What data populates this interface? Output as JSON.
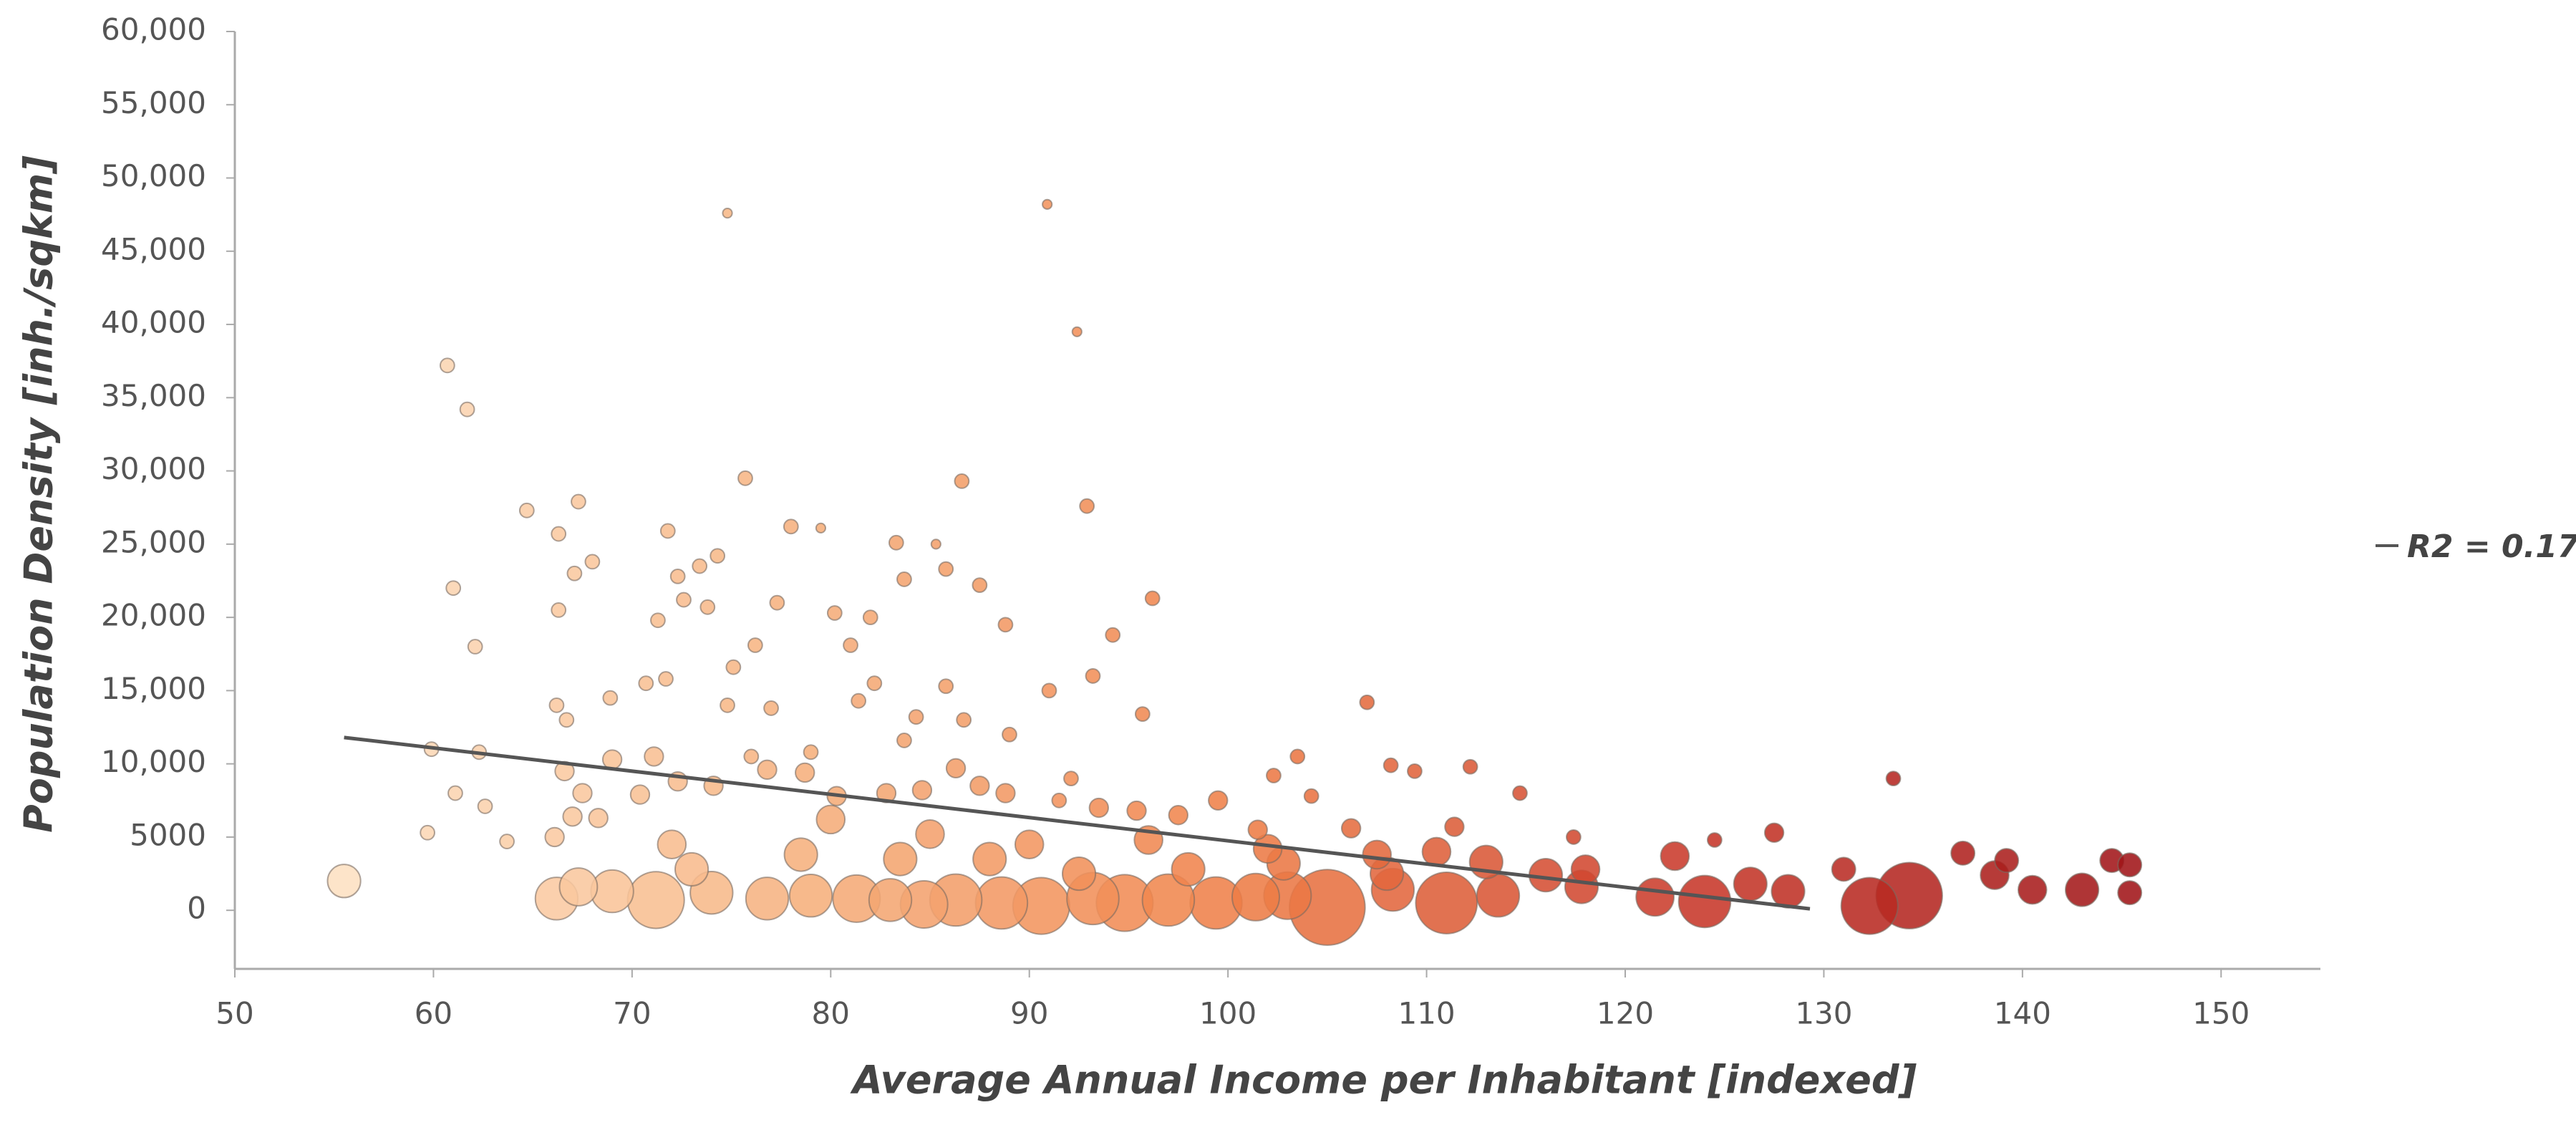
{
  "chart_data": {
    "type": "scatter",
    "x_label": "Average Annual Income per Inhabitant [indexed]",
    "y_label": "Population Density [inh./sqkm]",
    "xlim": [
      50,
      155
    ],
    "ylim": [
      -4000,
      60000
    ],
    "xticks": [
      50,
      60,
      70,
      80,
      90,
      100,
      110,
      120,
      130,
      140,
      150
    ],
    "yticks": [
      0,
      5000,
      {
        "value": 10000,
        "label": "10,000"
      },
      {
        "value": 15000,
        "label": "15,000"
      },
      {
        "value": 20000,
        "label": "20,000"
      },
      {
        "value": 25000,
        "label": "25,000"
      },
      {
        "value": 30000,
        "label": "30,000"
      },
      {
        "value": 35000,
        "label": "35,000"
      },
      {
        "value": 40000,
        "label": "40,000"
      },
      {
        "value": 45000,
        "label": "45,000"
      },
      {
        "value": 50000,
        "label": "50,000"
      },
      {
        "value": 55000,
        "label": "55,000"
      },
      {
        "value": 60000,
        "label": "60,000"
      }
    ],
    "grid": false,
    "colors": [
      "#fde0c2",
      "#f6b17e",
      "#ef7f47",
      "#c9392a",
      "#a01518"
    ],
    "x": [
      74.8,
      90.9,
      92.4,
      60.7,
      61.7,
      75.7,
      86.6,
      92.9,
      64.7,
      67.3,
      71.8,
      78,
      79.5,
      83.3,
      85.3,
      66.3,
      74.3,
      68,
      73.4,
      72.3,
      67.1,
      83.7,
      87.5,
      61,
      85.8,
      96.2,
      62.1,
      66.3,
      71.3,
      72.6,
      73.8,
      77.3,
      80.2,
      82,
      88.8,
      94.2,
      81,
      76.2,
      75.1,
      71.7,
      70.7,
      85.8,
      82.2,
      93.2,
      91,
      68.9,
      74.8,
      66.2,
      66.7,
      77,
      81.4,
      84.3,
      86.7,
      95.7,
      107,
      59.9,
      62.3,
      69,
      71.1,
      76,
      79,
      83.7,
      89,
      86.3,
      92.1,
      108.2,
      109.4,
      102.3,
      112.2,
      103.5,
      133.5,
      61.1,
      62.6,
      63.7,
      59.7,
      66.6,
      67.5,
      67,
      68.3,
      66.1,
      70.4,
      72.3,
      74.1,
      76.8,
      78.7,
      80.3,
      82.8,
      84.6,
      87.5,
      88.8,
      91.5,
      93.5,
      95.4,
      97.5,
      99.5,
      101.5,
      104.2,
      106.2,
      111.4,
      114.7,
      117.4,
      124.5,
      127.5,
      137,
      139.2,
      144.5,
      145.4,
      131,
      138.6,
      140.5,
      143,
      145.4,
      134.3,
      132.3,
      128.2,
      126.3,
      124,
      121.5,
      117.8,
      116,
      113.6,
      111,
      108.3,
      105,
      103,
      101.4,
      99.4,
      97,
      94.8,
      93.2,
      90.6,
      88.6,
      86.3,
      84.7,
      83,
      81.3,
      79,
      76.8,
      74,
      71.2,
      69,
      67.3,
      66.2,
      55.5,
      73,
      78.5,
      83.5,
      88,
      92.5,
      98,
      102.8,
      108,
      113,
      118,
      122.5,
      72,
      80,
      85,
      90,
      96,
      102,
      107.5,
      110.5
    ],
    "y": [
      47600,
      48200,
      39500,
      37200,
      34200,
      29500,
      29300,
      27600,
      27300,
      27900,
      25900,
      26200,
      26100,
      25100,
      25000,
      25700,
      24200,
      23800,
      23500,
      22800,
      23000,
      22600,
      22200,
      22000,
      23300,
      21300,
      18000,
      20500,
      19800,
      21200,
      20700,
      21000,
      20300,
      20000,
      19500,
      18800,
      18100,
      18100,
      16600,
      15800,
      15500,
      15300,
      15500,
      16000,
      15000,
      14500,
      14000,
      14000,
      13000,
      13800,
      14300,
      13200,
      13000,
      13400,
      14200,
      11000,
      10800,
      10300,
      10500,
      10500,
      10800,
      11600,
      12000,
      9700,
      9000,
      9900,
      9500,
      9200,
      9800,
      10500,
      9000,
      8000,
      7100,
      4700,
      5300,
      9500,
      8000,
      6400,
      6300,
      5000,
      7900,
      8800,
      8500,
      9600,
      9400,
      7800,
      8000,
      8200,
      8500,
      8000,
      7500,
      7000,
      6800,
      6500,
      7500,
      5500,
      7800,
      5600,
      5700,
      8000,
      5000,
      4800,
      5300,
      3900,
      3400,
      3400,
      3100,
      2800,
      2400,
      1400,
      1400,
      1200,
      1000,
      300,
      1300,
      1800,
      600,
      900,
      1600,
      2400,
      1000,
      500,
      1400,
      200,
      1000,
      900,
      500,
      700,
      500,
      800,
      300,
      500,
      700,
      400,
      700,
      800,
      1000,
      800,
      1200,
      700,
      1300,
      1600,
      800,
      2000,
      2800,
      3800,
      3500,
      3500,
      2500,
      2800,
      3200,
      2500,
      3300,
      2800,
      3700,
      4500,
      6200,
      5200,
      4500,
      4800,
      4200,
      3800,
      4000
    ],
    "sizes": [
      2,
      2,
      2,
      3,
      3,
      3,
      3,
      3,
      3,
      3,
      3,
      3,
      2,
      3,
      2,
      3,
      3,
      3,
      3,
      3,
      3,
      3,
      3,
      3,
      3,
      3,
      3,
      3,
      3,
      3,
      3,
      3,
      3,
      3,
      3,
      3,
      3,
      3,
      3,
      3,
      3,
      3,
      3,
      3,
      3,
      3,
      3,
      3,
      3,
      3,
      3,
      3,
      3,
      3,
      3,
      3,
      3,
      4,
      4,
      3,
      3,
      3,
      3,
      4,
      3,
      3,
      3,
      3,
      3,
      3,
      3,
      3,
      3,
      3,
      3,
      4,
      4,
      4,
      4,
      4,
      4,
      4,
      4,
      4,
      4,
      4,
      4,
      4,
      4,
      4,
      3,
      4,
      4,
      4,
      4,
      4,
      3,
      4,
      4,
      3,
      3,
      3,
      4,
      5,
      5,
      5,
      5,
      5,
      6,
      6,
      7,
      5,
      14,
      12,
      7,
      7,
      11,
      8,
      7,
      7,
      9,
      13,
      9,
      16,
      10,
      10,
      11,
      11,
      12,
      11,
      12,
      11,
      11,
      10,
      9,
      10,
      9,
      9,
      9,
      12,
      9,
      8,
      9,
      7,
      7,
      7,
      7,
      7,
      7,
      7,
      7,
      7,
      7,
      6,
      6,
      6,
      6,
      6,
      6,
      6,
      6,
      6,
      6
    ],
    "trendline": {
      "label": "R2 = 0.17",
      "color": "#555555",
      "x": [
        55.5,
        129.3
      ],
      "y": [
        11800,
        100
      ]
    }
  }
}
